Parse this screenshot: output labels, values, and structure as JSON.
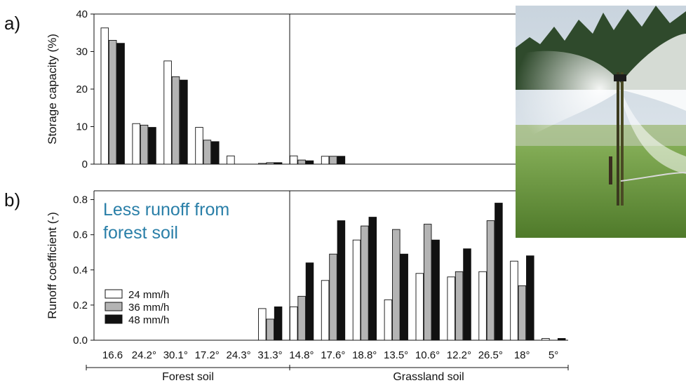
{
  "panel_labels": [
    "a)",
    "b)"
  ],
  "annotation": "Less runoff from forest soil",
  "groups": [
    "Forest soil",
    "Grassland soil"
  ],
  "legend": [
    "24 mm/h",
    "36 mm/h",
    "48 mm/h"
  ],
  "colors": {
    "s24": "#ffffff",
    "s36": "#b4b4b4",
    "s48": "#111111",
    "annotation": "#2a7fa8"
  },
  "photo_icon": "irrigation-sprinkler-photo",
  "chart_data": [
    {
      "type": "bar",
      "panel": "a)",
      "ylabel": "Storage capacity (%)",
      "ylim": [
        0,
        40
      ],
      "yticks": [
        0,
        10,
        20,
        30,
        40
      ],
      "categories": [
        "16.6",
        "24.2°",
        "30.1°",
        "17.2°",
        "24.3°",
        "31.3°",
        "14.8°",
        "17.6°",
        "18.8°",
        "13.5°",
        "10.6°",
        "12.2°",
        "26.5°",
        "18°",
        "5°"
      ],
      "series": [
        {
          "name": "24 mm/h",
          "values": [
            36.3,
            10.8,
            27.5,
            9.8,
            2.2,
            0.2,
            2.2,
            2.1,
            null,
            null,
            null,
            null,
            null,
            null,
            null
          ]
        },
        {
          "name": "36 mm/h",
          "values": [
            33.0,
            10.4,
            23.3,
            6.4,
            null,
            0.4,
            1.1,
            2.1,
            null,
            null,
            null,
            null,
            null,
            null,
            null
          ]
        },
        {
          "name": "48 mm/h",
          "values": [
            32.2,
            9.8,
            22.4,
            6.0,
            null,
            0.4,
            0.9,
            2.1,
            null,
            null,
            null,
            null,
            null,
            null,
            null
          ]
        }
      ]
    },
    {
      "type": "bar",
      "panel": "b)",
      "ylabel": "Runoff coefficient (-)",
      "ylim": [
        0,
        0.85
      ],
      "yticks": [
        "0.0",
        "0.2",
        "0.4",
        "0.6",
        "0.8"
      ],
      "categories": [
        "16.6",
        "24.2°",
        "30.1°",
        "17.2°",
        "24.3°",
        "31.3°",
        "14.8°",
        "17.6°",
        "18.8°",
        "13.5°",
        "10.6°",
        "12.2°",
        "26.5°",
        "18°",
        "5°"
      ],
      "series": [
        {
          "name": "24 mm/h",
          "values": [
            null,
            null,
            null,
            null,
            null,
            0.18,
            0.19,
            0.34,
            0.57,
            0.23,
            0.38,
            0.36,
            0.39,
            0.45,
            0.01
          ]
        },
        {
          "name": "36 mm/h",
          "values": [
            null,
            null,
            null,
            null,
            null,
            0.12,
            0.25,
            0.49,
            0.65,
            0.63,
            0.66,
            0.39,
            0.68,
            0.31,
            null
          ]
        },
        {
          "name": "48 mm/h",
          "values": [
            null,
            null,
            null,
            null,
            null,
            0.19,
            0.44,
            0.68,
            0.7,
            0.49,
            0.57,
            0.52,
            0.78,
            0.48,
            0.01
          ]
        }
      ]
    }
  ]
}
